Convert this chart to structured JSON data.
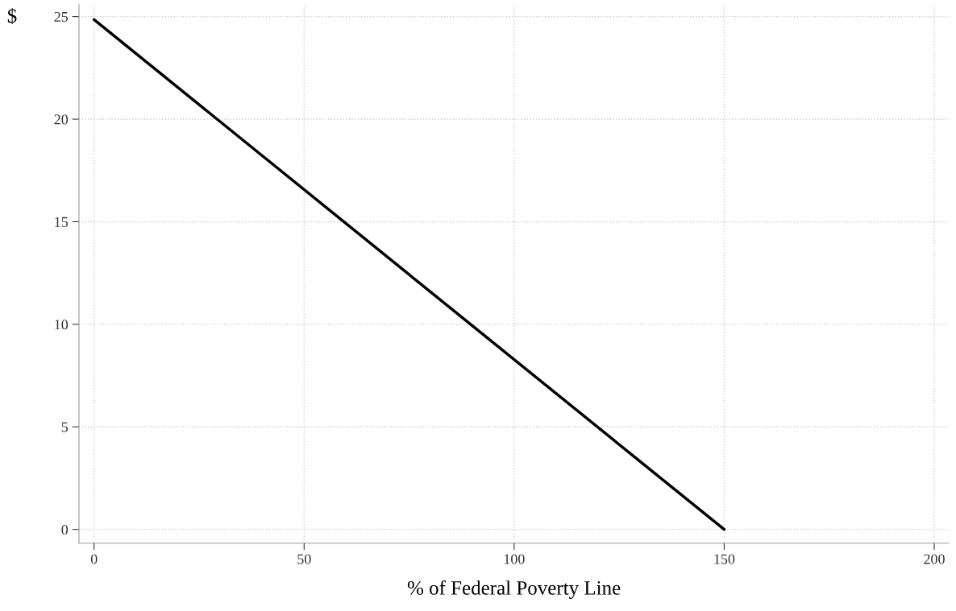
{
  "chart_data": {
    "type": "line",
    "xlabel": "% of Federal Poverty Line",
    "ylabel": "$",
    "x": [
      0,
      150
    ],
    "series": [
      {
        "color": "#000000",
        "values": [
          24.85,
          0
        ]
      }
    ],
    "xlim": [
      -3.6,
      203.5
    ],
    "ylim": [
      -0.67,
      25.6
    ],
    "xticks": [
      0,
      50,
      100,
      150,
      200
    ],
    "yticks": [
      0,
      5,
      10,
      15,
      20,
      25
    ],
    "grid": true,
    "line_style": "solid",
    "marker": "none",
    "legend": false
  }
}
